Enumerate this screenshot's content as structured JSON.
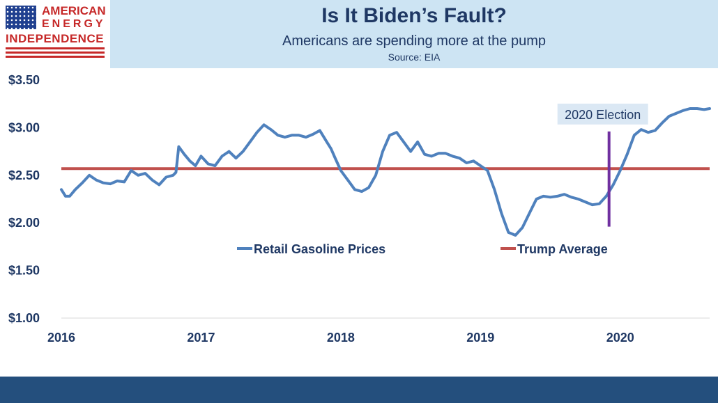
{
  "logo": {
    "line1": "AMERICAN",
    "line2": "ENERGY",
    "line3": "INDEPENDENCE"
  },
  "header": {
    "title": "Is It Biden’s Fault?",
    "subtitle": "Americans are spending more at the pump",
    "source": "Source: EIA"
  },
  "chart_data": {
    "type": "line",
    "title": "Is It Biden’s Fault?",
    "subtitle": "Americans are spending more at the pump",
    "xlabel": "",
    "ylabel": "",
    "xlim": [
      2016.0,
      2020.64
    ],
    "ylim": [
      1.0,
      3.5
    ],
    "x_ticks": [
      2016,
      2017,
      2018,
      2019,
      2020
    ],
    "x_tick_labels": [
      "2016",
      "2017",
      "2018",
      "2019",
      "2020"
    ],
    "y_ticks": [
      1.0,
      1.5,
      2.0,
      2.5,
      3.0,
      3.5
    ],
    "y_tick_labels": [
      "$1.00",
      "$1.50",
      "$2.00",
      "$2.50",
      "$3.00",
      "$3.50"
    ],
    "grid": false,
    "legend_position": "center",
    "series": [
      {
        "name": "Retail Gasoline Prices",
        "color": "#4f81bd",
        "x": [
          2016.0,
          2016.03,
          2016.06,
          2016.1,
          2016.15,
          2016.2,
          2016.25,
          2016.3,
          2016.35,
          2016.4,
          2016.45,
          2016.5,
          2016.55,
          2016.6,
          2016.65,
          2016.7,
          2016.75,
          2016.8,
          2016.82,
          2016.84,
          2016.88,
          2016.92,
          2016.96,
          2017.0,
          2017.05,
          2017.1,
          2017.15,
          2017.2,
          2017.25,
          2017.3,
          2017.35,
          2017.4,
          2017.45,
          2017.5,
          2017.55,
          2017.6,
          2017.65,
          2017.7,
          2017.75,
          2017.8,
          2017.85,
          2017.9,
          2017.93,
          2017.96,
          2018.0,
          2018.05,
          2018.1,
          2018.15,
          2018.2,
          2018.25,
          2018.3,
          2018.35,
          2018.4,
          2018.45,
          2018.5,
          2018.55,
          2018.6,
          2018.65,
          2018.7,
          2018.75,
          2018.8,
          2018.85,
          2018.9,
          2018.95,
          2019.0,
          2019.05,
          2019.1,
          2019.15,
          2019.2,
          2019.25,
          2019.3,
          2019.35,
          2019.4,
          2019.45,
          2019.5,
          2019.55,
          2019.6,
          2019.65,
          2019.7,
          2019.75,
          2019.8,
          2019.85,
          2019.9,
          2019.95,
          2020.0,
          2020.05,
          2020.1,
          2020.15,
          2020.2,
          2020.25,
          2020.3,
          2020.35,
          2020.4,
          2020.45,
          2020.5,
          2020.55,
          2020.6,
          2020.64
        ],
        "y": [
          2.35,
          2.28,
          2.28,
          2.35,
          2.42,
          2.5,
          2.45,
          2.42,
          2.41,
          2.44,
          2.43,
          2.55,
          2.5,
          2.52,
          2.45,
          2.4,
          2.48,
          2.5,
          2.53,
          2.8,
          2.72,
          2.65,
          2.6,
          2.7,
          2.62,
          2.6,
          2.7,
          2.75,
          2.68,
          2.75,
          2.85,
          2.95,
          3.03,
          2.98,
          2.92,
          2.9,
          2.92,
          2.92,
          2.9,
          2.93,
          2.97,
          2.85,
          2.78,
          2.68,
          2.55,
          2.45,
          2.35,
          2.33,
          2.37,
          2.5,
          2.75,
          2.92,
          2.95,
          2.85,
          2.75,
          2.85,
          2.72,
          2.7,
          2.73,
          2.73,
          2.7,
          2.68,
          2.63,
          2.65,
          2.6,
          2.55,
          2.35,
          2.1,
          1.9,
          1.87,
          1.95,
          2.1,
          2.25,
          2.28,
          2.27,
          2.28,
          2.3,
          2.27,
          2.25,
          2.22,
          2.19,
          2.2,
          2.28,
          2.4,
          2.55,
          2.72,
          2.92,
          2.98,
          2.95,
          2.97,
          3.05,
          3.12,
          3.15,
          3.18,
          3.2,
          3.2,
          3.19,
          3.2
        ]
      },
      {
        "name": "Trump Average",
        "color": "#c0504d",
        "x": [
          2016.0,
          2020.64
        ],
        "y": [
          2.57,
          2.57
        ]
      }
    ],
    "annotations": [
      {
        "text": "2020 Election",
        "x": 2019.92,
        "y_from": 1.96,
        "y_to": 2.96,
        "color": "#7030a0",
        "label_bg": "#dbe8f4"
      }
    ]
  }
}
